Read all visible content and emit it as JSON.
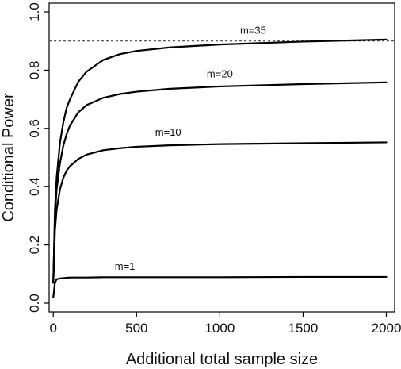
{
  "chart_data": {
    "type": "line",
    "title": "",
    "xlabel": "Additional total sample size",
    "ylabel": "Conditional Power",
    "xlim": [
      -25,
      2050
    ],
    "ylim": [
      -0.03,
      1.03
    ],
    "x_ticks": [
      0,
      500,
      1000,
      1500,
      2000
    ],
    "x_tick_labels": [
      "0",
      "500",
      "1000",
      "1500",
      "2000"
    ],
    "y_ticks": [
      0.0,
      0.2,
      0.4,
      0.6,
      0.8,
      1.0
    ],
    "y_tick_labels": [
      "0.0",
      "0.2",
      "0.4",
      "0.6",
      "0.8",
      "1.0"
    ],
    "grid": false,
    "legend": "none",
    "reference_line": {
      "y": 0.9,
      "style": "dashed"
    },
    "x": [
      0,
      10,
      20,
      40,
      60,
      80,
      100,
      150,
      200,
      300,
      400,
      500,
      700,
      1000,
      1500,
      2000
    ],
    "series": [
      {
        "name": "m=1",
        "values": [
          0.02,
          0.07,
          0.082,
          0.085,
          0.086,
          0.087,
          0.088,
          0.088,
          0.088,
          0.089,
          0.089,
          0.089,
          0.089,
          0.089,
          0.09,
          0.09
        ],
        "label_at": [
          430,
          0.115
        ]
      },
      {
        "name": "m=10",
        "values": [
          0.07,
          0.25,
          0.32,
          0.39,
          0.43,
          0.455,
          0.47,
          0.495,
          0.51,
          0.525,
          0.532,
          0.537,
          0.542,
          0.546,
          0.549,
          0.552
        ],
        "label_at": [
          690,
          0.575
        ]
      },
      {
        "name": "m=20",
        "values": [
          0.07,
          0.3,
          0.39,
          0.48,
          0.54,
          0.58,
          0.61,
          0.655,
          0.68,
          0.705,
          0.718,
          0.726,
          0.736,
          0.744,
          0.752,
          0.758
        ],
        "label_at": [
          1000,
          0.775
        ]
      },
      {
        "name": "m=35",
        "values": [
          0.07,
          0.32,
          0.43,
          0.55,
          0.62,
          0.67,
          0.7,
          0.76,
          0.795,
          0.835,
          0.855,
          0.866,
          0.878,
          0.888,
          0.898,
          0.905
        ],
        "label_at": [
          1200,
          0.925
        ]
      }
    ]
  }
}
